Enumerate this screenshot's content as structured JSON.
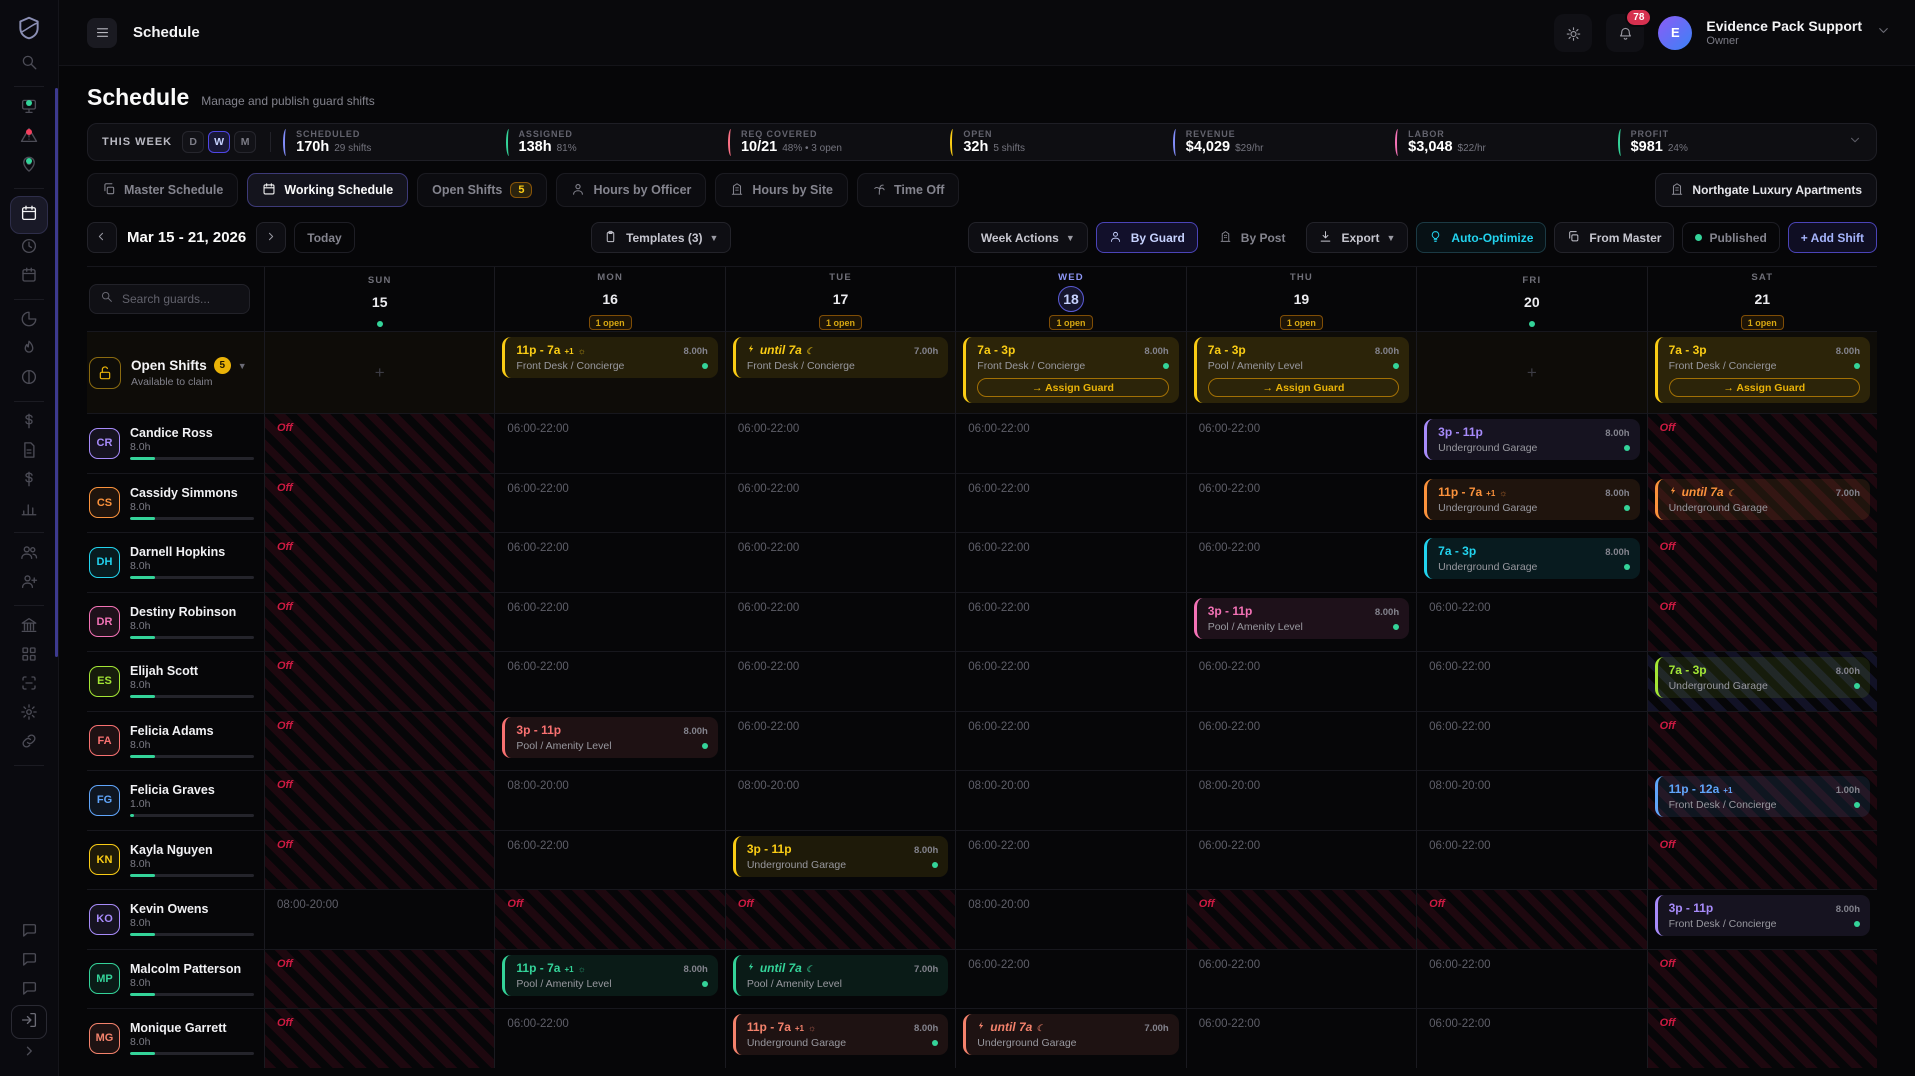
{
  "topbar": {
    "title": "Schedule",
    "notifications": "78",
    "user": {
      "initial": "E",
      "name": "Evidence Pack Support",
      "role": "Owner"
    }
  },
  "page_header": {
    "title": "Schedule",
    "subtitle": "Manage and publish guard shifts"
  },
  "stats": {
    "period": "THIS WEEK",
    "modes": [
      "D",
      "W",
      "M"
    ],
    "active_mode": "W",
    "items": [
      {
        "label": "SCHEDULED",
        "value": "170h",
        "sub": "29 shifts",
        "color": "#818cf8"
      },
      {
        "label": "ASSIGNED",
        "value": "138h",
        "sub": "81%",
        "color": "#34d399"
      },
      {
        "label": "REQ COVERED",
        "value": "10/21",
        "sub": "48% • 3 open",
        "color": "#fb7185"
      },
      {
        "label": "OPEN",
        "value": "32h",
        "sub": "5 shifts",
        "color": "#facc15"
      },
      {
        "label": "REVENUE",
        "value": "$4,029",
        "sub": "$29/hr",
        "color": "#818cf8"
      },
      {
        "label": "LABOR",
        "value": "$3,048",
        "sub": "$22/hr",
        "color": "#f472b6"
      },
      {
        "label": "PROFIT",
        "value": "$981",
        "sub": "24%",
        "color": "#34d399"
      }
    ]
  },
  "tabs": [
    {
      "label": "Master Schedule",
      "icon": "copy"
    },
    {
      "label": "Working Schedule",
      "icon": "calendar",
      "active": true
    },
    {
      "label": "Open Shifts",
      "badge": "5"
    },
    {
      "label": "Hours by Officer",
      "icon": "person"
    },
    {
      "label": "Hours by Site",
      "icon": "building"
    },
    {
      "label": "Time Off",
      "icon": "palm"
    }
  ],
  "site_button": "Northgate Luxury Apartments",
  "toolbar": {
    "date_range": "Mar 15 - 21, 2026",
    "today": "Today",
    "templates": "Templates (3)",
    "week_actions": "Week Actions",
    "by_guard": "By Guard",
    "by_post": "By Post",
    "export": "Export",
    "auto_optimize": "Auto-Optimize",
    "from_master": "From Master",
    "published": "Published",
    "add_shift": "+ Add Shift"
  },
  "calendar": {
    "search_placeholder": "Search guards...",
    "assign_label": "→ Assign Guard",
    "days": [
      {
        "dow": "SUN",
        "date": "15",
        "marker": "dot"
      },
      {
        "dow": "MON",
        "date": "16",
        "marker": "1 open"
      },
      {
        "dow": "TUE",
        "date": "17",
        "marker": "1 open"
      },
      {
        "dow": "WED",
        "date": "18",
        "marker": "1 open",
        "today": true
      },
      {
        "dow": "THU",
        "date": "19",
        "marker": "1 open"
      },
      {
        "dow": "FRI",
        "date": "20",
        "marker": "dot"
      },
      {
        "dow": "SAT",
        "date": "21",
        "marker": "1 open"
      }
    ],
    "open_row": {
      "title": "Open Shifts",
      "count": "5",
      "subtitle": "Available to claim",
      "cells": [
        {
          "t": "plus"
        },
        {
          "t": "shift",
          "time": "11p - 7a",
          "sup": "+1",
          "suf": "sun",
          "site": "Front Desk / Concierge",
          "hours": "8.00h",
          "color": "#facc15",
          "dot": true
        },
        {
          "t": "shift",
          "pre": "bolt",
          "time": "until 7a",
          "italic": true,
          "suf": "moon",
          "site": "Front Desk / Concierge",
          "hours": "7.00h",
          "color": "#facc15"
        },
        {
          "t": "shift",
          "time": "7a - 3p",
          "site": "Front Desk / Concierge",
          "hours": "8.00h",
          "color": "#facc15",
          "dot": true,
          "assign": true
        },
        {
          "t": "shift",
          "time": "7a - 3p",
          "site": "Pool / Amenity Level",
          "hours": "8.00h",
          "color": "#facc15",
          "dot": true,
          "assign": true
        },
        {
          "t": "plus"
        },
        {
          "t": "shift",
          "time": "7a - 3p",
          "site": "Front Desk / Concierge",
          "hours": "8.00h",
          "color": "#facc15",
          "dot": true,
          "assign": true
        }
      ]
    },
    "guards": [
      {
        "initials": "CR",
        "name": "Candice Ross",
        "hours": "8.0h",
        "color": "#a78bfa",
        "progress": 20,
        "cells": [
          {
            "t": "off"
          },
          {
            "t": "avail",
            "time": "06:00-22:00"
          },
          {
            "t": "avail",
            "time": "06:00-22:00"
          },
          {
            "t": "avail",
            "time": "06:00-22:00"
          },
          {
            "t": "avail",
            "time": "06:00-22:00"
          },
          {
            "t": "shift",
            "time": "3p - 11p",
            "site": "Underground Garage",
            "hours": "8.00h",
            "color": "#a78bfa",
            "dot": true
          },
          {
            "t": "off"
          }
        ]
      },
      {
        "initials": "CS",
        "name": "Cassidy Simmons",
        "hours": "8.0h",
        "color": "#fb923c",
        "progress": 20,
        "cells": [
          {
            "t": "off"
          },
          {
            "t": "avail",
            "time": "06:00-22:00"
          },
          {
            "t": "avail",
            "time": "06:00-22:00"
          },
          {
            "t": "avail",
            "time": "06:00-22:00"
          },
          {
            "t": "avail",
            "time": "06:00-22:00"
          },
          {
            "t": "shift",
            "time": "11p - 7a",
            "sup": "+1",
            "suf": "sun",
            "site": "Underground Garage",
            "hours": "8.00h",
            "color": "#fb923c",
            "dot": true
          },
          {
            "t": "shift",
            "pre": "bolt",
            "time": "until 7a",
            "italic": true,
            "suf": "moon",
            "site": "Underground Garage",
            "hours": "7.00h",
            "color": "#fb923c",
            "striped": "red"
          }
        ]
      },
      {
        "initials": "DH",
        "name": "Darnell Hopkins",
        "hours": "8.0h",
        "color": "#22d3ee",
        "progress": 20,
        "cells": [
          {
            "t": "off"
          },
          {
            "t": "avail",
            "time": "06:00-22:00"
          },
          {
            "t": "avail",
            "time": "06:00-22:00"
          },
          {
            "t": "avail",
            "time": "06:00-22:00"
          },
          {
            "t": "avail",
            "time": "06:00-22:00"
          },
          {
            "t": "shift",
            "time": "7a - 3p",
            "site": "Underground Garage",
            "hours": "8.00h",
            "color": "#22d3ee",
            "dot": true
          },
          {
            "t": "off"
          }
        ]
      },
      {
        "initials": "DR",
        "name": "Destiny Robinson",
        "hours": "8.0h",
        "color": "#f472b6",
        "progress": 20,
        "cells": [
          {
            "t": "off"
          },
          {
            "t": "avail",
            "time": "06:00-22:00"
          },
          {
            "t": "avail",
            "time": "06:00-22:00"
          },
          {
            "t": "avail",
            "time": "06:00-22:00"
          },
          {
            "t": "shift",
            "time": "3p - 11p",
            "site": "Pool / Amenity Level",
            "hours": "8.00h",
            "color": "#f472b6",
            "dot": true
          },
          {
            "t": "avail",
            "time": "06:00-22:00"
          },
          {
            "t": "off"
          }
        ]
      },
      {
        "initials": "ES",
        "name": "Elijah Scott",
        "hours": "8.0h",
        "color": "#a3e635",
        "progress": 20,
        "cells": [
          {
            "t": "off"
          },
          {
            "t": "avail",
            "time": "06:00-22:00"
          },
          {
            "t": "avail",
            "time": "06:00-22:00"
          },
          {
            "t": "avail",
            "time": "06:00-22:00"
          },
          {
            "t": "avail",
            "time": "06:00-22:00"
          },
          {
            "t": "avail",
            "time": "06:00-22:00"
          },
          {
            "t": "shift",
            "time": "7a - 3p",
            "site": "Underground Garage",
            "hours": "8.00h",
            "color": "#a3e635",
            "dot": true,
            "striped": "purple"
          }
        ]
      },
      {
        "initials": "FA",
        "name": "Felicia Adams",
        "hours": "8.0h",
        "color": "#f87171",
        "progress": 20,
        "cells": [
          {
            "t": "off"
          },
          {
            "t": "shift",
            "time": "3p - 11p",
            "site": "Pool / Amenity Level",
            "hours": "8.00h",
            "color": "#f87171",
            "dot": true
          },
          {
            "t": "avail",
            "time": "06:00-22:00"
          },
          {
            "t": "avail",
            "time": "06:00-22:00"
          },
          {
            "t": "avail",
            "time": "06:00-22:00"
          },
          {
            "t": "avail",
            "time": "06:00-22:00"
          },
          {
            "t": "off"
          }
        ]
      },
      {
        "initials": "FG",
        "name": "Felicia Graves",
        "hours": "1.0h",
        "color": "#60a5fa",
        "progress": 3,
        "cells": [
          {
            "t": "off"
          },
          {
            "t": "avail",
            "time": "08:00-20:00"
          },
          {
            "t": "avail",
            "time": "08:00-20:00"
          },
          {
            "t": "avail",
            "time": "08:00-20:00"
          },
          {
            "t": "avail",
            "time": "08:00-20:00"
          },
          {
            "t": "avail",
            "time": "08:00-20:00"
          },
          {
            "t": "shift",
            "time": "11p - 12a",
            "sup": "+1",
            "site": "Front Desk / Concierge",
            "hours": "1.00h",
            "color": "#60a5fa",
            "dot": true,
            "striped": "red"
          }
        ]
      },
      {
        "initials": "KN",
        "name": "Kayla Nguyen",
        "hours": "8.0h",
        "color": "#facc15",
        "progress": 20,
        "cells": [
          {
            "t": "off"
          },
          {
            "t": "avail",
            "time": "06:00-22:00"
          },
          {
            "t": "shift",
            "time": "3p - 11p",
            "site": "Underground Garage",
            "hours": "8.00h",
            "color": "#facc15",
            "dot": true
          },
          {
            "t": "avail",
            "time": "06:00-22:00"
          },
          {
            "t": "avail",
            "time": "06:00-22:00"
          },
          {
            "t": "avail",
            "time": "06:00-22:00"
          },
          {
            "t": "off"
          }
        ]
      },
      {
        "initials": "KO",
        "name": "Kevin Owens",
        "hours": "8.0h",
        "color": "#a78bfa",
        "progress": 20,
        "cells": [
          {
            "t": "avail",
            "time": "08:00-20:00"
          },
          {
            "t": "off"
          },
          {
            "t": "off"
          },
          {
            "t": "avail",
            "time": "08:00-20:00"
          },
          {
            "t": "off"
          },
          {
            "t": "off"
          },
          {
            "t": "shift",
            "time": "3p - 11p",
            "site": "Front Desk / Concierge",
            "hours": "8.00h",
            "color": "#a78bfa",
            "dot": true
          }
        ]
      },
      {
        "initials": "MP",
        "name": "Malcolm Patterson",
        "hours": "8.0h",
        "color": "#34d399",
        "progress": 20,
        "cells": [
          {
            "t": "off"
          },
          {
            "t": "shift",
            "time": "11p - 7a",
            "sup": "+1",
            "suf": "sun",
            "site": "Pool / Amenity Level",
            "hours": "8.00h",
            "color": "#34d399",
            "dot": true
          },
          {
            "t": "shift",
            "pre": "bolt",
            "time": "until 7a",
            "italic": true,
            "suf": "moon",
            "site": "Pool / Amenity Level",
            "hours": "7.00h",
            "color": "#34d399"
          },
          {
            "t": "avail",
            "time": "06:00-22:00"
          },
          {
            "t": "avail",
            "time": "06:00-22:00"
          },
          {
            "t": "avail",
            "time": "06:00-22:00"
          },
          {
            "t": "off"
          }
        ]
      },
      {
        "initials": "MG",
        "name": "Monique Garrett",
        "hours": "8.0h",
        "color": "#f4826c",
        "progress": 20,
        "cells": [
          {
            "t": "off"
          },
          {
            "t": "avail",
            "time": "06:00-22:00"
          },
          {
            "t": "shift",
            "time": "11p - 7a",
            "sup": "+1",
            "suf": "sun",
            "site": "Underground Garage",
            "hours": "8.00h",
            "color": "#f4826c",
            "dot": true
          },
          {
            "t": "shift",
            "pre": "bolt",
            "time": "until 7a",
            "italic": true,
            "suf": "moon",
            "site": "Underground Garage",
            "hours": "7.00h",
            "color": "#f4826c"
          },
          {
            "t": "avail",
            "time": "06:00-22:00"
          },
          {
            "t": "avail",
            "time": "06:00-22:00"
          },
          {
            "t": "off"
          }
        ]
      }
    ]
  },
  "sidebar": {
    "items": [
      {
        "icon": "logo"
      },
      {
        "icon": "search-nav"
      },
      {
        "div": true
      },
      {
        "icon": "monitor",
        "dot": "#34d399"
      },
      {
        "icon": "alert-triangle",
        "dot": "#f43f5e"
      },
      {
        "icon": "map-pin",
        "dot": "#34d399"
      },
      {
        "div": true
      },
      {
        "icon": "calendar",
        "active": true
      },
      {
        "icon": "clock"
      },
      {
        "icon": "calendar-box"
      },
      {
        "div": true
      },
      {
        "icon": "pie"
      },
      {
        "icon": "flame"
      },
      {
        "icon": "contrast"
      },
      {
        "div": true
      },
      {
        "icon": "dollar"
      },
      {
        "icon": "document"
      },
      {
        "icon": "dollar-2"
      },
      {
        "icon": "bar-chart"
      },
      {
        "div": true
      },
      {
        "icon": "users"
      },
      {
        "icon": "user-plus"
      },
      {
        "div": true
      },
      {
        "icon": "bank"
      },
      {
        "icon": "grid"
      },
      {
        "icon": "scan"
      },
      {
        "icon": "gear"
      },
      {
        "icon": "link"
      },
      {
        "div": true
      },
      {
        "icon": "download-nav"
      },
      {
        "spacer": true
      },
      {
        "icon": "chat-1"
      },
      {
        "icon": "chat-2"
      },
      {
        "icon": "chat-3"
      },
      {
        "icon": "login",
        "boxed": true
      },
      {
        "icon": "chevron-collapse"
      }
    ]
  }
}
